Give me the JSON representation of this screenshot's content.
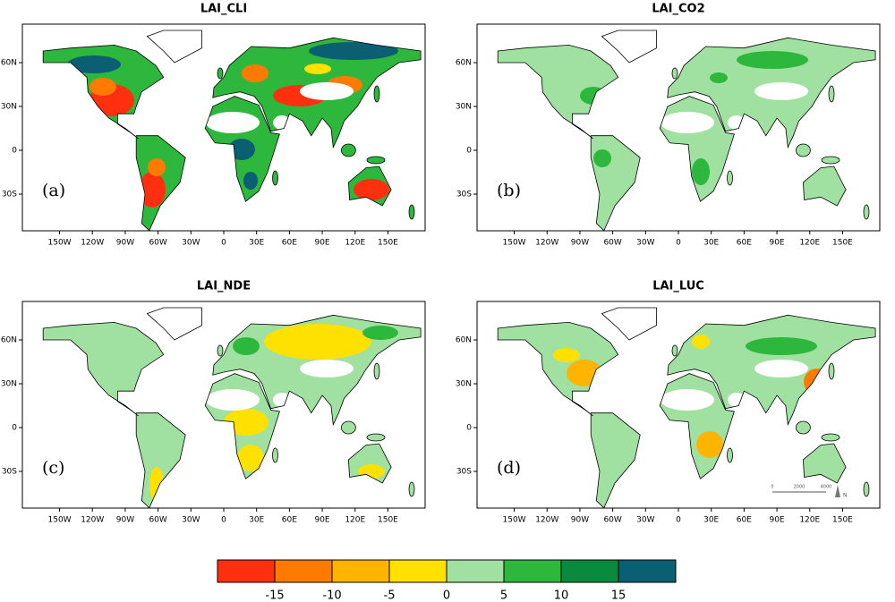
{
  "panels": [
    {
      "title": "LAI_CLI",
      "label": "(a)"
    },
    {
      "title": "LAI_CO2",
      "label": "(b)"
    },
    {
      "title": "LAI_NDE",
      "label": "(c)"
    },
    {
      "title": "LAI_LUC",
      "label": "(d)"
    }
  ],
  "lon_ticks": [
    "150W",
    "120W",
    "90W",
    "60W",
    "30W",
    "0",
    "30E",
    "60E",
    "90E",
    "120E",
    "150E"
  ],
  "lat_ticks": [
    "60N",
    "30N",
    "0",
    "30S"
  ],
  "colorbar": {
    "colors": [
      "#ff3010",
      "#ff7a00",
      "#ffb400",
      "#ffe100",
      "#a0e0a0",
      "#2db83d",
      "#0a8a3c",
      "#0a5f73"
    ],
    "ticks": [
      -15,
      -10,
      -5,
      0,
      5,
      10,
      15
    ]
  },
  "scale_bar": {
    "labels": [
      "0",
      "2000",
      "4000"
    ],
    "north": "N"
  }
}
